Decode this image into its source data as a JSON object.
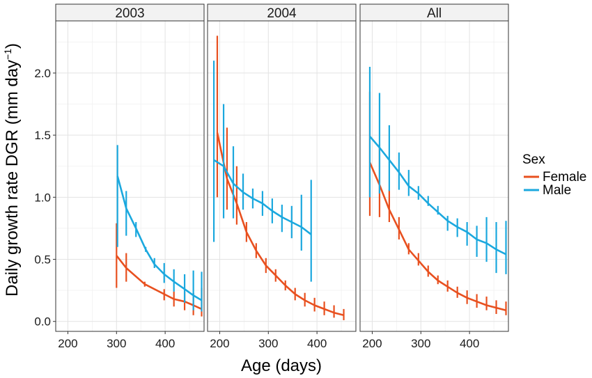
{
  "chart_data": {
    "type": "line",
    "facets": [
      "2003",
      "2004",
      "All"
    ],
    "xlabel": "Age (days)",
    "ylabel": "Daily growth rate DGR (mm day",
    "ylabel_superscript": "−1",
    "ylabel_close": ")",
    "xlim": [
      175,
      480
    ],
    "ylim": [
      -0.08,
      2.42
    ],
    "x_ticks": [
      200,
      300,
      400
    ],
    "y_ticks": [
      0.0,
      0.5,
      1.0,
      1.5,
      2.0
    ],
    "y_tick_labels": [
      "0.0",
      "0.5",
      "1.0",
      "1.5",
      "2.0"
    ],
    "grid": true,
    "legend": {
      "title": "Sex",
      "position": "right",
      "entries": [
        "Female",
        "Male"
      ]
    },
    "colors": {
      "Female": "#E8501F",
      "Male": "#1BA8DE"
    },
    "panels": [
      {
        "facet": "2003",
        "series": [
          {
            "name": "Female",
            "x": [
              300,
              320,
              358,
              398,
              418,
              440,
              458,
              475
            ],
            "y": [
              0.53,
              0.43,
              0.3,
              0.22,
              0.18,
              0.16,
              0.13,
              0.1
            ],
            "ylow": [
              0.27,
              0.32,
              0.28,
              0.17,
              0.12,
              0.09,
              0.05,
              0.04
            ],
            "yhigh": [
              0.79,
              0.55,
              0.32,
              0.26,
              0.24,
              0.24,
              0.23,
              0.27
            ]
          },
          {
            "name": "Male",
            "x": [
              302,
              320,
              340,
              360,
              378,
              398,
              418,
              440,
              458,
              475
            ],
            "y": [
              1.17,
              0.91,
              0.75,
              0.58,
              0.46,
              0.38,
              0.32,
              0.26,
              0.21,
              0.17
            ],
            "ylow": [
              0.6,
              0.69,
              0.68,
              0.56,
              0.43,
              0.31,
              0.24,
              0.15,
              0.09,
              0.08
            ],
            "yhigh": [
              1.42,
              1.05,
              0.8,
              0.6,
              0.51,
              0.47,
              0.42,
              0.38,
              0.41,
              0.4
            ]
          }
        ]
      },
      {
        "facet": "2004",
        "series": [
          {
            "name": "Female",
            "x": [
              195,
              215,
              235,
              255,
              275,
              295,
              315,
              335,
              355,
              375,
              395,
              415,
              435,
              455
            ],
            "y": [
              1.52,
              1.15,
              0.95,
              0.72,
              0.57,
              0.45,
              0.37,
              0.29,
              0.22,
              0.17,
              0.13,
              0.1,
              0.07,
              0.05
            ],
            "ylow": [
              1.0,
              0.9,
              0.78,
              0.64,
              0.51,
              0.39,
              0.32,
              0.25,
              0.17,
              0.12,
              0.08,
              0.05,
              0.03,
              0.01
            ],
            "yhigh": [
              2.3,
              1.56,
              1.25,
              0.8,
              0.63,
              0.51,
              0.42,
              0.33,
              0.27,
              0.23,
              0.19,
              0.16,
              0.13,
              0.1
            ]
          },
          {
            "name": "Male",
            "x": [
              188,
              208,
              228,
              248,
              268,
              288,
              308,
              328,
              348,
              368,
              388
            ],
            "y": [
              1.3,
              1.25,
              1.11,
              1.04,
              0.99,
              0.95,
              0.89,
              0.84,
              0.8,
              0.76,
              0.7
            ],
            "ylow": [
              0.64,
              0.83,
              0.83,
              0.9,
              0.91,
              0.85,
              0.79,
              0.72,
              0.67,
              0.57,
              0.32
            ],
            "yhigh": [
              2.1,
              1.75,
              1.41,
              1.19,
              1.07,
              1.05,
              0.99,
              0.94,
              0.93,
              1.02,
              1.14
            ]
          }
        ]
      },
      {
        "facet": "All",
        "series": [
          {
            "name": "Female",
            "x": [
              195,
              215,
              235,
              255,
              275,
              295,
              315,
              335,
              355,
              375,
              395,
              415,
              435,
              455,
              475
            ],
            "y": [
              1.28,
              1.1,
              0.9,
              0.74,
              0.58,
              0.49,
              0.4,
              0.33,
              0.28,
              0.23,
              0.19,
              0.16,
              0.13,
              0.11,
              0.09
            ],
            "ylow": [
              0.85,
              0.84,
              0.8,
              0.66,
              0.54,
              0.45,
              0.36,
              0.3,
              0.24,
              0.19,
              0.14,
              0.11,
              0.09,
              0.06,
              0.05
            ],
            "yhigh": [
              1.85,
              1.43,
              1.06,
              0.84,
              0.63,
              0.55,
              0.45,
              0.37,
              0.33,
              0.28,
              0.25,
              0.22,
              0.2,
              0.17,
              0.16
            ]
          },
          {
            "name": "Male",
            "x": [
              195,
              215,
              235,
              255,
              275,
              295,
              315,
              335,
              355,
              375,
              395,
              415,
              435,
              455,
              475
            ],
            "y": [
              1.49,
              1.4,
              1.3,
              1.2,
              1.09,
              1.03,
              0.95,
              0.88,
              0.81,
              0.76,
              0.72,
              0.66,
              0.63,
              0.58,
              0.54
            ],
            "ylow": [
              1.0,
              1.03,
              1.05,
              1.06,
              1.01,
              0.98,
              0.93,
              0.86,
              0.73,
              0.68,
              0.61,
              0.52,
              0.48,
              0.39,
              0.38
            ],
            "yhigh": [
              2.05,
              1.84,
              1.58,
              1.36,
              1.22,
              1.09,
              1.01,
              0.93,
              0.85,
              0.83,
              0.8,
              0.77,
              0.84,
              0.8,
              0.81
            ]
          }
        ]
      }
    ]
  }
}
